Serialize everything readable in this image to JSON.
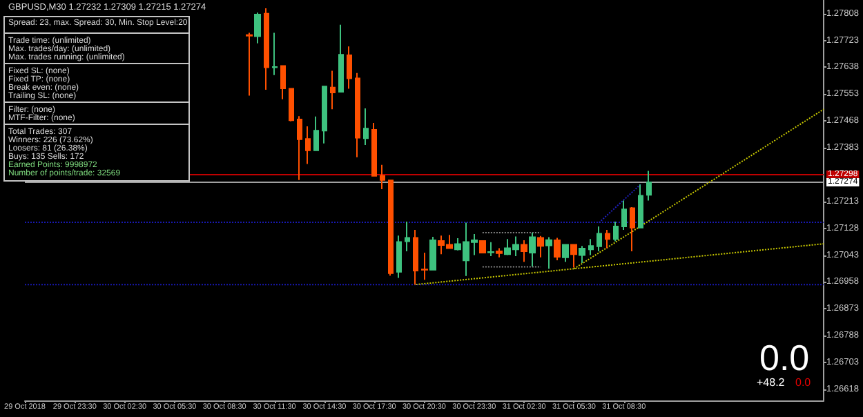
{
  "chart_data": {
    "type": "candlestick",
    "x": [
      "2018-10-30T10:00",
      "2018-10-30T10:30",
      "2018-10-30T11:00",
      "2018-10-30T11:30",
      "2018-10-30T12:00",
      "2018-10-30T12:30",
      "2018-10-30T13:00",
      "2018-10-30T13:30",
      "2018-10-30T14:00",
      "2018-10-30T14:30",
      "2018-10-30T15:00",
      "2018-10-30T15:30",
      "2018-10-30T16:00",
      "2018-10-30T16:30",
      "2018-10-30T17:00",
      "2018-10-30T17:30",
      "2018-10-30T18:00",
      "2018-10-30T18:30",
      "2018-10-30T19:00",
      "2018-10-30T19:30",
      "2018-10-30T20:00",
      "2018-10-30T20:30",
      "2018-10-30T21:00",
      "2018-10-30T21:30",
      "2018-10-30T22:00",
      "2018-10-30T22:30",
      "2018-10-30T23:00",
      "2018-10-30T23:30",
      "2018-10-31T00:00",
      "2018-10-31T00:30",
      "2018-10-31T01:00",
      "2018-10-31T01:30",
      "2018-10-31T02:00",
      "2018-10-31T02:30",
      "2018-10-31T03:00",
      "2018-10-31T03:30",
      "2018-10-31T04:00",
      "2018-10-31T04:30",
      "2018-10-31T05:00",
      "2018-10-31T05:30",
      "2018-10-31T06:00",
      "2018-10-31T06:30",
      "2018-10-31T07:00",
      "2018-10-31T07:30",
      "2018-10-31T08:00",
      "2018-10-31T08:30",
      "2018-10-31T09:00",
      "2018-10-31T09:30",
      "2018-10-31T10:00"
    ],
    "ohlc": [
      [
        1.2774,
        1.27747,
        1.27548,
        1.27738
      ],
      [
        1.27736,
        1.27811,
        1.27714,
        1.27805
      ],
      [
        1.27808,
        1.27825,
        1.27567,
        1.27638
      ],
      [
        1.27638,
        1.27747,
        1.27613,
        1.27639
      ],
      [
        1.27642,
        1.27642,
        1.27537,
        1.27571
      ],
      [
        1.2757,
        1.2757,
        1.27467,
        1.2747
      ],
      [
        1.27473,
        1.27483,
        1.27281,
        1.2741
      ],
      [
        1.27411,
        1.27451,
        1.27332,
        1.27375
      ],
      [
        1.27375,
        1.27482,
        1.27375,
        1.27437
      ],
      [
        1.27437,
        1.27577,
        1.27397,
        1.27577
      ],
      [
        1.27574,
        1.27627,
        1.27505,
        1.27558
      ],
      [
        1.2756,
        1.27773,
        1.2756,
        1.27678
      ],
      [
        1.27676,
        1.27704,
        1.2757,
        1.27603
      ],
      [
        1.27603,
        1.2762,
        1.27353,
        1.27415
      ],
      [
        1.27413,
        1.27508,
        1.27392,
        1.27444
      ],
      [
        1.2744,
        1.27462,
        1.27294,
        1.27294
      ],
      [
        1.27294,
        1.27329,
        1.27252,
        1.27281
      ],
      [
        1.2728,
        1.2728,
        1.26978,
        1.26986
      ],
      [
        1.2699,
        1.27105,
        1.26971,
        1.27085
      ],
      [
        1.27087,
        1.27149,
        1.27055,
        1.27098
      ],
      [
        1.27098,
        1.27123,
        1.2695,
        1.26994
      ],
      [
        1.26998,
        1.27051,
        1.26965,
        1.26997
      ],
      [
        1.26997,
        1.27101,
        1.26997,
        1.2709
      ],
      [
        1.27088,
        1.27105,
        1.27046,
        1.27075
      ],
      [
        1.27076,
        1.27107,
        1.27065,
        1.27065
      ],
      [
        1.27061,
        1.27097,
        1.27058,
        1.27078
      ],
      [
        1.27026,
        1.27146,
        1.26977,
        1.27085
      ],
      [
        1.27084,
        1.2711,
        1.27043,
        1.2709
      ],
      [
        1.27088,
        1.27088,
        1.27051,
        1.27051
      ],
      [
        1.27052,
        1.27084,
        1.2704,
        1.27053
      ],
      [
        1.27055,
        1.27065,
        1.27036,
        1.27049
      ],
      [
        1.27046,
        1.27094,
        1.27043,
        1.27065
      ],
      [
        1.27061,
        1.27102,
        1.2704,
        1.27076
      ],
      [
        1.27076,
        1.2709,
        1.27022,
        1.27055
      ],
      [
        1.27051,
        1.27114,
        1.27007,
        1.271
      ],
      [
        1.27098,
        1.27104,
        1.27036,
        1.27072
      ],
      [
        1.27074,
        1.271,
        1.27,
        1.27091
      ],
      [
        1.2709,
        1.27098,
        1.27027,
        1.27038
      ],
      [
        1.27036,
        1.27076,
        1.27022,
        1.27076
      ],
      [
        1.27076,
        1.27076,
        1.27004,
        1.27046
      ],
      [
        1.27043,
        1.27072,
        1.27018,
        1.27064
      ],
      [
        1.27061,
        1.27094,
        1.27043,
        1.27072
      ],
      [
        1.27071,
        1.27134,
        1.27055,
        1.27111
      ],
      [
        1.27111,
        1.27123,
        1.27065,
        1.27094
      ],
      [
        1.27094,
        1.27149,
        1.27087,
        1.27134
      ],
      [
        1.27134,
        1.27216,
        1.27123,
        1.27188
      ],
      [
        1.27192,
        1.27195,
        1.27055,
        1.2713
      ],
      [
        1.2713,
        1.27267,
        1.2713,
        1.27231
      ],
      [
        1.27234,
        1.2731,
        1.27216,
        1.27274
      ]
    ],
    "colors": [
      "#ff5000",
      "#3ec27f",
      "#ff5000",
      "#3ec27f",
      "#ff5000",
      "#ff5000",
      "#ff5000",
      "#ff5000",
      "#3ec27f",
      "#3ec27f",
      "#ff5000",
      "#3ec27f",
      "#ff5000",
      "#ff5000",
      "#3ec27f",
      "#ff5000",
      "#ff5000",
      "#ff5000",
      "#3ec27f",
      "#3ec27f",
      "#ff5000",
      "#ff5000",
      "#3ec27f",
      "#ff5000",
      "#ff5000",
      "#3ec27f",
      "#3ec27f",
      "#3ec27f",
      "#ff5000",
      "#3ec27f",
      "#ff5000",
      "#3ec27f",
      "#3ec27f",
      "#ff5000",
      "#3ec27f",
      "#ff5000",
      "#3ec27f",
      "#ff5000",
      "#3ec27f",
      "#ff5000",
      "#3ec27f",
      "#3ec27f",
      "#3ec27f",
      "#ff5000",
      "#3ec27f",
      "#3ec27f",
      "#ff5000",
      "#3ec27f",
      "#3ec27f"
    ],
    "series": [
      {
        "type": "line",
        "color": "#c8c800",
        "line_style": "dotted",
        "x": [
          "2018-10-30T20:00",
          "2018-10-31T20:30"
        ],
        "values": [
          1.2695,
          1.27079
        ]
      },
      {
        "type": "line",
        "color": "#c8c800",
        "line_style": "dotted",
        "x": [
          "2018-10-31T05:30",
          "2018-10-31T20:30"
        ],
        "values": [
          1.27,
          1.27505
        ]
      },
      {
        "type": "line",
        "color": "#2020c0",
        "line_style": "dotted",
        "x": [
          "2018-10-31T07:00",
          "2018-10-31T09:30"
        ],
        "values": [
          1.27146,
          1.27267
        ]
      },
      {
        "type": "line",
        "color": "#808080",
        "line_style": "dotted",
        "x": [
          "2018-10-31T00:00",
          "2018-10-31T03:30"
        ],
        "values": [
          1.27114,
          1.27114
        ]
      },
      {
        "type": "line",
        "color": "#808080",
        "line_style": "dotted",
        "x": [
          "2018-10-31T00:00",
          "2018-10-31T03:30"
        ],
        "values": [
          1.27006,
          1.27006
        ]
      }
    ],
    "xlim": [
      "2018-10-29T20:30",
      "2018-10-31T20:30"
    ],
    "xticks": [
      {
        "value": "2018-10-29T20:30",
        "label": "29 Oct 2018"
      },
      {
        "value": "2018-10-29T23:30",
        "label": "29 Oct 23:30"
      },
      {
        "value": "2018-10-30T02:30",
        "label": "30 Oct 02:30"
      },
      {
        "value": "2018-10-30T05:30",
        "label": "30 Oct 05:30"
      },
      {
        "value": "2018-10-30T08:30",
        "label": "30 Oct 08:30"
      },
      {
        "value": "2018-10-30T11:30",
        "label": "30 Oct 11:30"
      },
      {
        "value": "2018-10-30T14:30",
        "label": "30 Oct 14:30"
      },
      {
        "value": "2018-10-30T17:30",
        "label": "30 Oct 17:30"
      },
      {
        "value": "2018-10-30T20:30",
        "label": "30 Oct 20:30"
      },
      {
        "value": "2018-10-30T23:30",
        "label": "30 Oct 23:30"
      },
      {
        "value": "2018-10-31T02:30",
        "label": "31 Oct 02:30"
      },
      {
        "value": "2018-10-31T05:30",
        "label": "31 Oct 05:30"
      },
      {
        "value": "2018-10-31T08:30",
        "label": "31 Oct 08:30"
      }
    ],
    "ylim": [
      1.26583,
      1.27851
    ],
    "yticks": [
      1.26618,
      1.26703,
      1.26788,
      1.26873,
      1.26958,
      1.27043,
      1.27128,
      1.27213,
      1.27383,
      1.27468,
      1.27553,
      1.27638,
      1.27723,
      1.27808
    ],
    "ref_lines": [
      {
        "axis": "y",
        "value": 1.27298,
        "label": "1.27298",
        "color": "#c00000",
        "line_style": "solid"
      },
      {
        "axis": "y",
        "value": 1.27274,
        "label": "1.27274",
        "color": "#a0a0a0",
        "line_style": "solid"
      },
      {
        "axis": "y",
        "value": 1.27147,
        "label": null,
        "color": "#1818b0",
        "line_style": "dotted"
      },
      {
        "axis": "y",
        "value": 1.2695,
        "label": null,
        "color": "#1818b0",
        "line_style": "dotted"
      }
    ],
    "annotations": [
      "GBPUSD,M30 1.27232 1.27309 1.27215 1.27274",
      "Spread: 23, max. Spread: 30, Min. Stop Level:20",
      "Trade time: (unlimited)",
      "Max. trades/day: (unlimited)",
      "Max. trades running: (unlimited)",
      "Fixed SL: (none)",
      "Fixed TP: (none)",
      "Break even: (none)",
      "Trailing SL: (none)",
      "Filter: (none)",
      "MTF-Filter: (none)",
      "Total Trades: 307",
      "Winners: 226 (73.62%)",
      "Loosers: 81 (26.38%)",
      "Buys: 135 Sells: 172",
      "Earned Points: 9998972",
      "Number of points/trade: 32569",
      "0.0",
      "+48.2",
      "0.0"
    ]
  }
}
